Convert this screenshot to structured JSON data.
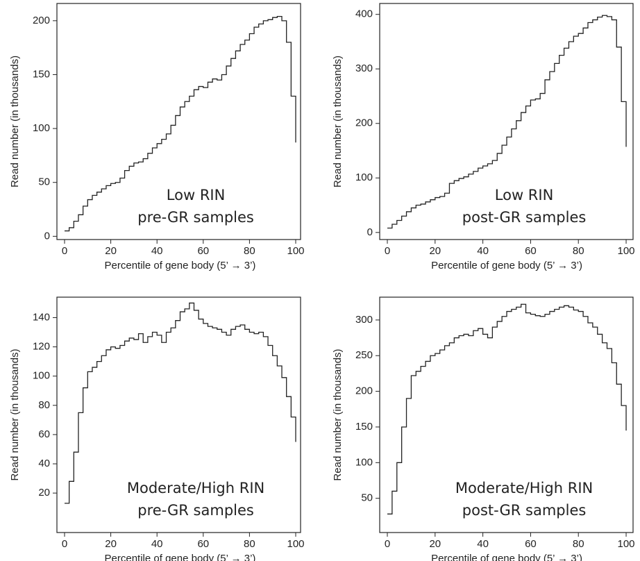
{
  "chart_data": [
    {
      "type": "line",
      "drawstyle": "steps",
      "color": "#222222",
      "xlabel": "Percentile of gene body (5’ → 3’)",
      "ylabel": "Read number (in thousands)",
      "annotations": [
        "Low RIN",
        "pre-GR samples"
      ],
      "xlim": [
        -3.3,
        102.1
      ],
      "ylim": [
        -3,
        216
      ],
      "xticks": [
        0,
        20,
        40,
        60,
        80,
        100
      ],
      "yticks": [
        0,
        50,
        100,
        150,
        200
      ],
      "x": [
        0,
        2,
        4,
        6,
        8,
        10,
        12,
        14,
        16,
        18,
        20,
        22,
        24,
        26,
        28,
        30,
        32,
        34,
        36,
        38,
        40,
        42,
        44,
        46,
        48,
        50,
        52,
        54,
        56,
        58,
        60,
        62,
        64,
        66,
        68,
        70,
        72,
        74,
        76,
        78,
        80,
        82,
        84,
        86,
        88,
        90,
        92,
        94,
        96,
        98,
        100
      ],
      "values": [
        5,
        8,
        14,
        20,
        28,
        34,
        38,
        41,
        44,
        47,
        49,
        50,
        54,
        61,
        65,
        68,
        69,
        72,
        77,
        82,
        86,
        90,
        95,
        103,
        112,
        120,
        125,
        130,
        136,
        139,
        138,
        143,
        146,
        145,
        150,
        158,
        165,
        172,
        178,
        182,
        188,
        194,
        197,
        200,
        201,
        203,
        204,
        200,
        180,
        130,
        87
      ]
    },
    {
      "type": "line",
      "drawstyle": "steps",
      "color": "#222222",
      "xlabel": "Percentile of gene body (5’ → 3’)",
      "ylabel": "Read number (in thousands)",
      "annotations": [
        "Low RIN",
        "post-GR samples"
      ],
      "xlim": [
        -3.2,
        102.9
      ],
      "ylim": [
        -13,
        420
      ],
      "xticks": [
        0,
        20,
        40,
        60,
        80,
        100
      ],
      "yticks": [
        0,
        100,
        200,
        300,
        400
      ],
      "x": [
        0,
        2,
        4,
        6,
        8,
        10,
        12,
        14,
        16,
        18,
        20,
        22,
        24,
        26,
        28,
        30,
        32,
        34,
        36,
        38,
        40,
        42,
        44,
        46,
        48,
        50,
        52,
        54,
        56,
        58,
        60,
        62,
        64,
        66,
        68,
        70,
        72,
        74,
        76,
        78,
        80,
        82,
        84,
        86,
        88,
        90,
        92,
        94,
        96,
        98,
        100
      ],
      "values": [
        8,
        15,
        22,
        30,
        38,
        45,
        50,
        52,
        56,
        60,
        64,
        66,
        72,
        90,
        95,
        99,
        102,
        107,
        112,
        118,
        122,
        126,
        132,
        145,
        160,
        175,
        190,
        205,
        220,
        232,
        243,
        245,
        255,
        280,
        295,
        310,
        325,
        338,
        350,
        360,
        365,
        375,
        385,
        390,
        395,
        398,
        396,
        390,
        340,
        240,
        157
      ]
    },
    {
      "type": "line",
      "drawstyle": "steps",
      "color": "#222222",
      "xlabel": "Percentile of gene body (5’ → 3’)",
      "ylabel": "Read number (in thousands)",
      "annotations": [
        "Moderate/High RIN",
        "pre-GR samples"
      ],
      "xlim": [
        -3.3,
        102.1
      ],
      "ylim": [
        -7,
        154
      ],
      "xticks": [
        0,
        20,
        40,
        60,
        80,
        100
      ],
      "yticks": [
        20,
        40,
        60,
        80,
        100,
        120,
        140
      ],
      "x": [
        0,
        2,
        4,
        6,
        8,
        10,
        12,
        14,
        16,
        18,
        20,
        22,
        24,
        26,
        28,
        30,
        32,
        34,
        36,
        38,
        40,
        42,
        44,
        46,
        48,
        50,
        52,
        54,
        56,
        58,
        60,
        62,
        64,
        66,
        68,
        70,
        72,
        74,
        76,
        78,
        80,
        82,
        84,
        86,
        88,
        90,
        92,
        94,
        96,
        98,
        100
      ],
      "values": [
        13,
        28,
        48,
        75,
        92,
        103,
        106,
        110,
        114,
        118,
        120,
        119,
        121,
        124,
        126,
        125,
        129,
        123,
        127,
        130,
        128,
        123,
        130,
        133,
        138,
        144,
        146,
        150,
        145,
        139,
        136,
        134,
        133,
        132,
        130,
        128,
        132,
        134,
        135,
        132,
        130,
        129,
        130,
        127,
        121,
        114,
        107,
        99,
        86,
        72,
        55
      ]
    },
    {
      "type": "line",
      "drawstyle": "steps",
      "color": "#222222",
      "xlabel": "Percentile of gene body (5’ → 3’)",
      "ylabel": "Read number (in thousands)",
      "annotations": [
        "Moderate/High RIN",
        "post-GR samples"
      ],
      "xlim": [
        -3.2,
        102.9
      ],
      "ylim": [
        2,
        332
      ],
      "xticks": [
        0,
        20,
        40,
        60,
        80,
        100
      ],
      "yticks": [
        50,
        100,
        150,
        200,
        250,
        300
      ],
      "x": [
        0,
        2,
        4,
        6,
        8,
        10,
        12,
        14,
        16,
        18,
        20,
        22,
        24,
        26,
        28,
        30,
        32,
        34,
        36,
        38,
        40,
        42,
        44,
        46,
        48,
        50,
        52,
        54,
        56,
        58,
        60,
        62,
        64,
        66,
        68,
        70,
        72,
        74,
        76,
        78,
        80,
        82,
        84,
        86,
        88,
        90,
        92,
        94,
        96,
        98,
        100
      ],
      "values": [
        28,
        60,
        100,
        150,
        190,
        222,
        228,
        235,
        242,
        250,
        253,
        258,
        264,
        268,
        275,
        278,
        280,
        278,
        285,
        288,
        280,
        275,
        290,
        298,
        305,
        312,
        315,
        318,
        322,
        310,
        308,
        306,
        305,
        308,
        312,
        315,
        318,
        320,
        318,
        314,
        312,
        305,
        296,
        290,
        280,
        268,
        260,
        240,
        210,
        180,
        145
      ]
    }
  ]
}
